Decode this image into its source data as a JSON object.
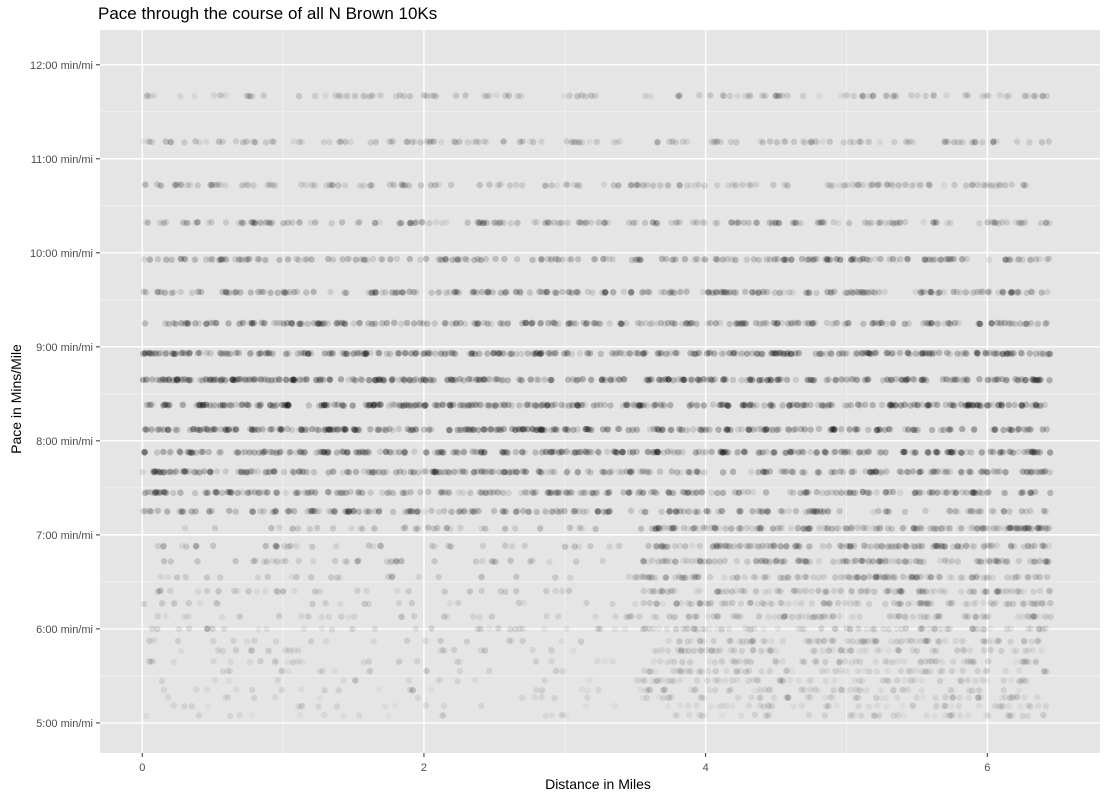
{
  "chart_data": {
    "type": "scatter",
    "title": "Pace through the course of all N Brown 10Ks",
    "xlabel": "Distance in Miles",
    "ylabel": "Pace in Mins/Mile",
    "xlim": [
      -0.3,
      6.8
    ],
    "ylim_minutes": [
      4.68,
      12.37
    ],
    "x_ticks": [
      0,
      2,
      4,
      6
    ],
    "x_tick_labels": [
      "0",
      "2",
      "4",
      "6"
    ],
    "y_ticks_minutes": [
      5,
      6,
      7,
      8,
      9,
      10,
      11,
      12
    ],
    "y_tick_labels": [
      "5:00 min/mi",
      "6:00 min/mi",
      "7:00 min/mi",
      "8:00 min/mi",
      "9:00 min/mi",
      "10:00 min/mi",
      "11:00 min/mi",
      "12:00 min/mi"
    ],
    "grid": true,
    "point_color": "#000000",
    "point_alpha": 0.08,
    "panel_background": "#e5e5e5",
    "x_range_of_points": [
      0,
      6.45
    ],
    "series": [
      {
        "pace_min": 11.67,
        "density": 0.35
      },
      {
        "pace_min": 11.18,
        "density": 0.4
      },
      {
        "pace_min": 10.72,
        "density": 0.45
      },
      {
        "pace_min": 10.32,
        "density": 0.55
      },
      {
        "pace_min": 9.93,
        "density": 0.65
      },
      {
        "pace_min": 9.58,
        "density": 0.7
      },
      {
        "pace_min": 9.25,
        "density": 0.8
      },
      {
        "pace_min": 8.93,
        "density": 0.95
      },
      {
        "pace_min": 8.65,
        "density": 1.0
      },
      {
        "pace_min": 8.38,
        "density": 1.0
      },
      {
        "pace_min": 8.12,
        "density": 0.95
      },
      {
        "pace_min": 7.88,
        "density": 0.9
      },
      {
        "pace_min": 7.67,
        "density": 0.8
      },
      {
        "pace_min": 7.45,
        "density": 0.75
      },
      {
        "pace_min": 7.25,
        "density": 0.65
      },
      {
        "pace_min": 7.07,
        "density": 0.55
      },
      {
        "pace_min": 6.88,
        "density": 0.5
      },
      {
        "pace_min": 6.72,
        "density": 0.45
      },
      {
        "pace_min": 6.55,
        "density": 0.4
      },
      {
        "pace_min": 6.4,
        "density": 0.35
      },
      {
        "pace_min": 6.27,
        "density": 0.3
      },
      {
        "pace_min": 6.13,
        "density": 0.28
      },
      {
        "pace_min": 6.0,
        "density": 0.25
      },
      {
        "pace_min": 5.87,
        "density": 0.22
      },
      {
        "pace_min": 5.77,
        "density": 0.2
      },
      {
        "pace_min": 5.65,
        "density": 0.18
      },
      {
        "pace_min": 5.55,
        "density": 0.16
      },
      {
        "pace_min": 5.45,
        "density": 0.14
      },
      {
        "pace_min": 5.35,
        "density": 0.12
      },
      {
        "pace_min": 5.27,
        "density": 0.1
      },
      {
        "pace_min": 5.18,
        "density": 0.09
      },
      {
        "pace_min": 5.08,
        "density": 0.08
      }
    ]
  }
}
